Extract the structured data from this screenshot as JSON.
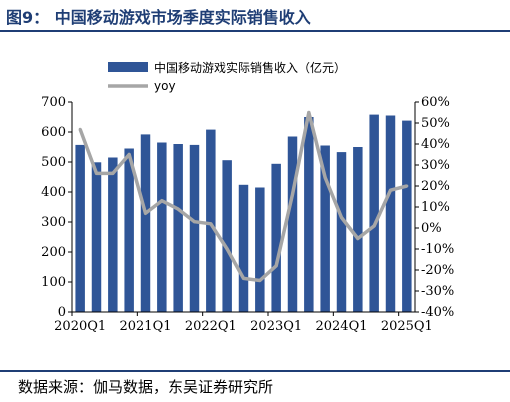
{
  "header": {
    "title": "图9：  中国移动游戏市场季度实际销售收入"
  },
  "footer": {
    "source": "数据来源：伽马数据，东吴证券研究所"
  },
  "colors": {
    "bar": "#2f5597",
    "line": "#a6a6a6",
    "rule": "#1f3e75"
  },
  "chart_data": {
    "type": "bar",
    "title": "",
    "categories": [
      "2020Q1",
      "2020Q2",
      "2020Q3",
      "2020Q4",
      "2021Q1",
      "2021Q2",
      "2021Q3",
      "2021Q4",
      "2022Q1",
      "2022Q2",
      "2022Q3",
      "2022Q4",
      "2023Q1",
      "2023Q2",
      "2023Q3",
      "2023Q4",
      "2024Q1",
      "2024Q2",
      "2024Q3",
      "2024Q4",
      "2025Q1"
    ],
    "x_tick_labels": [
      "2020Q1",
      "2021Q1",
      "2022Q1",
      "2023Q1",
      "2024Q1",
      "2025Q1"
    ],
    "series": [
      {
        "name": "中国移动游戏实际销售收入（亿元）",
        "type": "bar",
        "axis": "left",
        "values": [
          557,
          499,
          515,
          545,
          592,
          565,
          560,
          557,
          608,
          506,
          424,
          415,
          494,
          585,
          650,
          555,
          533,
          550,
          658,
          655,
          638
        ]
      },
      {
        "name": "yoy",
        "type": "line",
        "axis": "right",
        "values": [
          47,
          26,
          26,
          35,
          7,
          13,
          9,
          3,
          2,
          -10,
          -24,
          -25,
          -18,
          16,
          55,
          24,
          5,
          -5,
          1,
          18,
          20
        ]
      }
    ],
    "y_left": {
      "min": 0,
      "max": 700,
      "ticks": [
        0,
        100,
        200,
        300,
        400,
        500,
        600,
        700
      ]
    },
    "y_right": {
      "min": -40,
      "max": 60,
      "ticks": [
        "60%",
        "50%",
        "40%",
        "30%",
        "20%",
        "10%",
        "0%",
        "-10%",
        "-20%",
        "-30%",
        "-40%"
      ]
    },
    "legend_position": "top-left",
    "grid": false
  }
}
